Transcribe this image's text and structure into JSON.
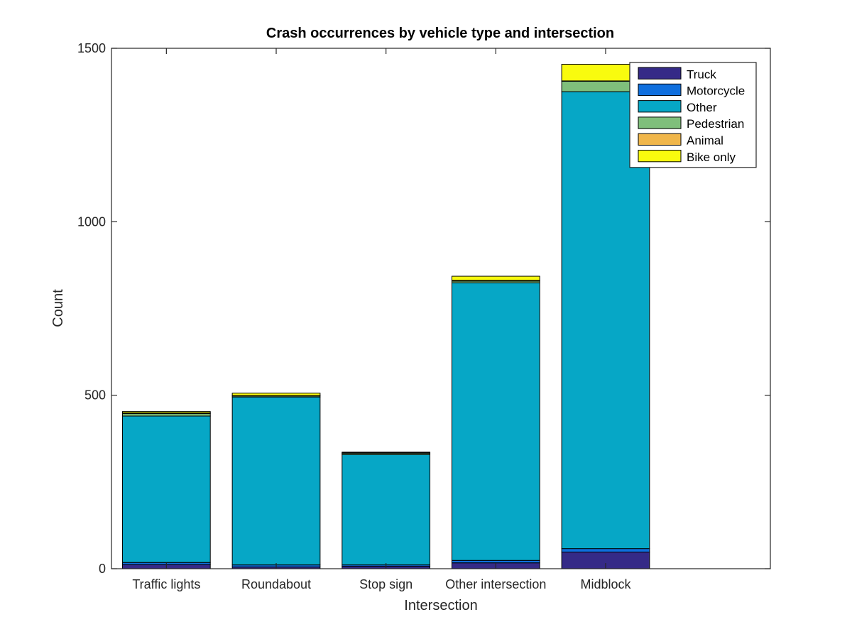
{
  "chart_data": {
    "type": "bar",
    "stacked": true,
    "title": "Crash occurrences by vehicle type and intersection",
    "xlabel": "Intersection",
    "ylabel": "Count",
    "ylim": [
      0,
      1500
    ],
    "yticks": [
      0,
      500,
      1000,
      1500
    ],
    "grid": false,
    "legend_position": "top-right",
    "categories": [
      "Traffic lights",
      "Roundabout",
      "Stop sign",
      "Other intersection",
      "Midblock"
    ],
    "series": [
      {
        "name": "Truck",
        "color": "#352a87",
        "values": [
          12,
          5,
          7,
          17,
          48
        ]
      },
      {
        "name": "Motorcycle",
        "color": "#0f6fde",
        "values": [
          6,
          6,
          4,
          7,
          10
        ]
      },
      {
        "name": "Other",
        "color": "#06a7c6",
        "values": [
          422,
          484,
          318,
          800,
          1317
        ]
      },
      {
        "name": "Pedestrian",
        "color": "#7fbf7b",
        "values": [
          7,
          3,
          4,
          5,
          30
        ]
      },
      {
        "name": "Animal",
        "color": "#f0b64a",
        "values": [
          2,
          1,
          1,
          2,
          1
        ]
      },
      {
        "name": "Bike only",
        "color": "#f9fb0e",
        "values": [
          4,
          7,
          2,
          12,
          48
        ]
      }
    ]
  }
}
